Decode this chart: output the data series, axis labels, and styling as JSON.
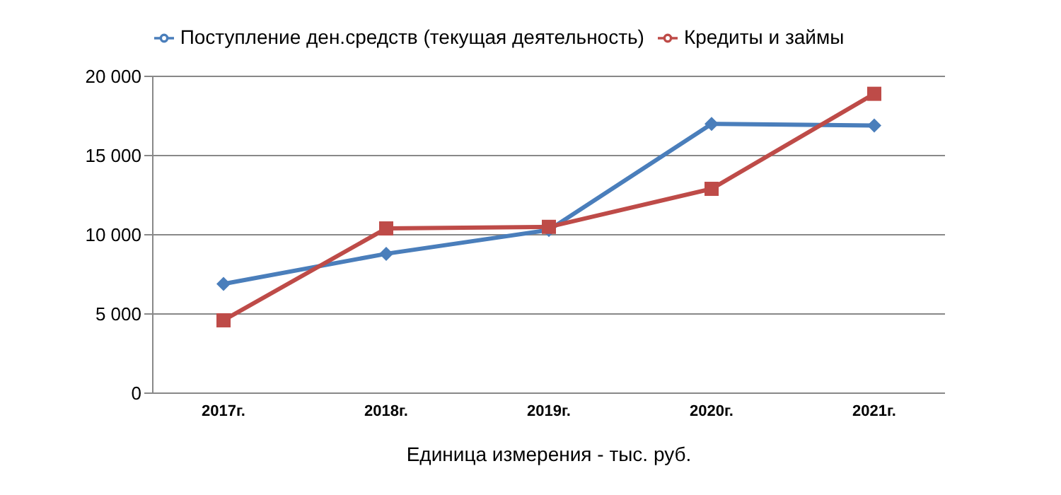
{
  "chart_data": {
    "type": "line",
    "xlabel": "Единица измерения - тыс. руб.",
    "categories": [
      "2017г.",
      "2018г.",
      "2019г.",
      "2020г.",
      "2021г."
    ],
    "series": [
      {
        "name": "Поступление ден.средств (текущая деятельность)",
        "color": "#4a7ebb",
        "values": [
          6900,
          8800,
          10300,
          17000,
          16900
        ],
        "marker": "diamond"
      },
      {
        "name": "Кредиты и займы",
        "color": "#be4b48",
        "values": [
          4600,
          10400,
          10500,
          12900,
          18900
        ],
        "marker": "square"
      }
    ],
    "ylim": [
      0,
      20000
    ],
    "yticks": [
      {
        "value": 0,
        "label": "0"
      },
      {
        "value": 5000,
        "label": "5 000"
      },
      {
        "value": 10000,
        "label": "10 000"
      },
      {
        "value": 15000,
        "label": "15 000"
      },
      {
        "value": 20000,
        "label": "20 000"
      }
    ],
    "grid": "y",
    "legend": "top",
    "line_style": "solid"
  }
}
